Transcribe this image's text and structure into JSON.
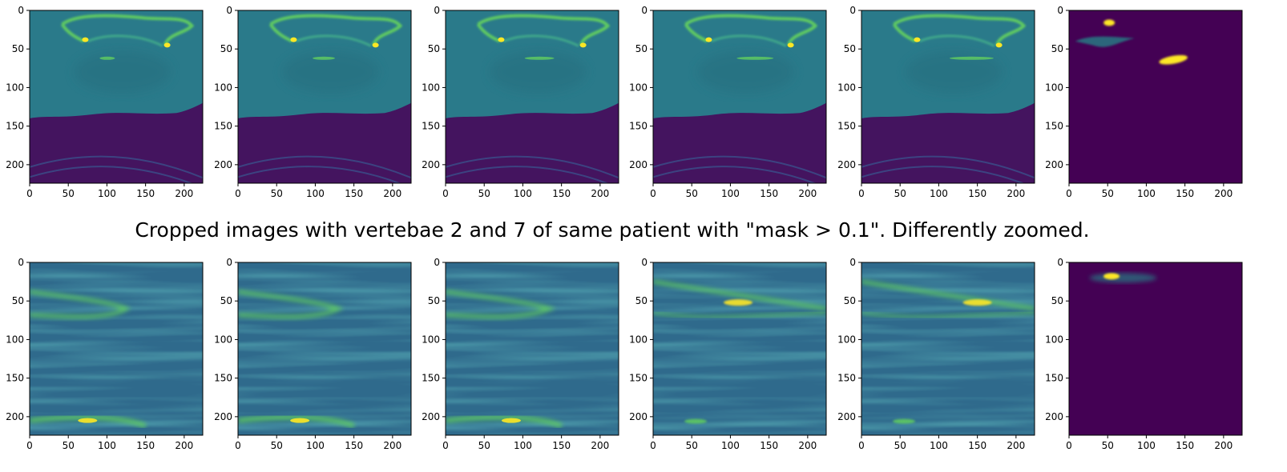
{
  "caption": "Cropped images with vertebae 2 and 7 of same patient with \"mask > 0.1\". Differently zoomed.",
  "axis": {
    "x_ticks": [
      "0",
      "50",
      "100",
      "150",
      "200"
    ],
    "y_ticks": [
      "0",
      "50",
      "100",
      "150",
      "200"
    ],
    "xlim": [
      0,
      224
    ],
    "ylim": [
      224,
      0
    ]
  },
  "colors": {
    "viridis_dark": "#440154",
    "viridis_teal": "#21918c",
    "viridis_green": "#5ec962",
    "viridis_yellow": "#fde725",
    "ct_body": "#2a7a8a",
    "ct_air": "#44145f"
  },
  "rows": [
    {
      "name": "full-scan-row",
      "panels": [
        {
          "kind": "ct-slice",
          "slice": 1
        },
        {
          "kind": "ct-slice",
          "slice": 2
        },
        {
          "kind": "ct-slice",
          "slice": 3
        },
        {
          "kind": "ct-slice",
          "slice": 4
        },
        {
          "kind": "ct-slice",
          "slice": 5
        },
        {
          "kind": "mask"
        }
      ]
    },
    {
      "name": "cropped-row",
      "panels": [
        {
          "kind": "zoom-slice",
          "slice": 1
        },
        {
          "kind": "zoom-slice",
          "slice": 2
        },
        {
          "kind": "zoom-slice",
          "slice": 3
        },
        {
          "kind": "zoom-slice",
          "slice": 4
        },
        {
          "kind": "zoom-slice",
          "slice": 5
        },
        {
          "kind": "mask"
        }
      ]
    }
  ]
}
